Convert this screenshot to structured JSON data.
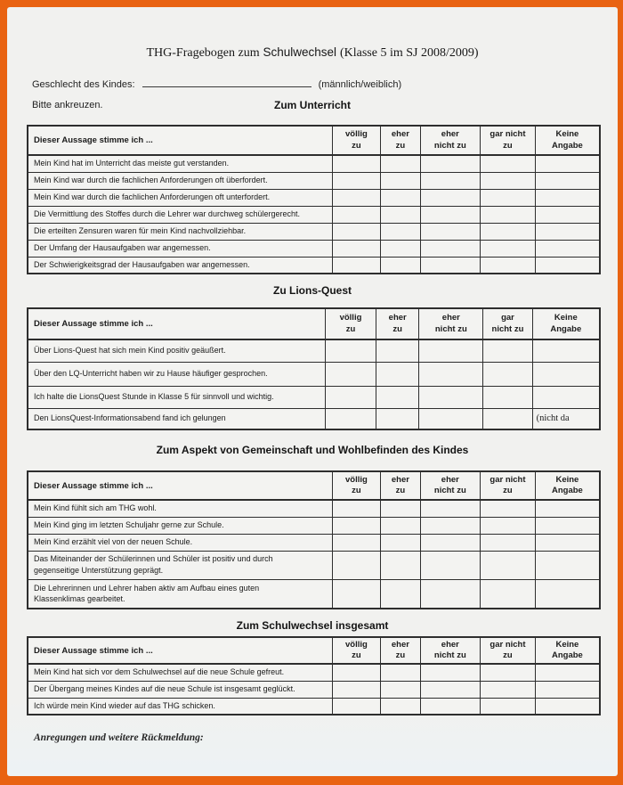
{
  "document": {
    "title": {
      "prefix": "THG-Fragebogen zum",
      "highlight": "Schulwechsel",
      "suffix": "(Klasse 5 im SJ 2008/2009)"
    },
    "gender_field": {
      "label": "Geschlecht des Kindes:",
      "value": "",
      "suffix": "(männlich/weiblich)"
    },
    "instruction": "Bitte ankreuzen.",
    "statement_header": "Dieser Aussage stimme ich ...",
    "answer_scale": [
      "völlig zu",
      "eher zu",
      "eher nicht zu",
      "gar nicht zu",
      "Keine Angabe"
    ],
    "sections": [
      {
        "title": "Zum Unterricht",
        "columns": [
          "völlig\nzu",
          "eher\nzu",
          "eher\nnicht zu",
          "gar nicht\nzu",
          "Keine\nAngabe"
        ],
        "rows": [
          {
            "statement": "Mein Kind hat im Unterricht das meiste gut verstanden."
          },
          {
            "statement": "Mein Kind war durch die fachlichen Anforderungen oft  überfordert."
          },
          {
            "statement": "Mein Kind war durch die fachlichen Anforderungen oft  unterfordert."
          },
          {
            "statement": "Die Vermittlung des Stoffes durch die Lehrer war durchweg schülergerecht."
          },
          {
            "statement": "Die erteilten  Zensuren waren für mein Kind nachvollziehbar."
          },
          {
            "statement": "Der Umfang der Hausaufgaben war angemessen."
          },
          {
            "statement": "Der Schwierigkeitsgrad der Hausaufgaben war angemessen."
          }
        ]
      },
      {
        "title": "Zu Lions-Quest",
        "columns": [
          "völlig\nzu",
          "eher\nzu",
          "eher\nnicht zu",
          "gar\nnicht zu",
          "Keine\nAngabe"
        ],
        "rows": [
          {
            "statement": "Über Lions-Quest hat sich mein Kind positiv geäußert."
          },
          {
            "statement": "Über den LQ-Unterricht haben wir zu Hause häufiger gesprochen."
          },
          {
            "statement": "Ich halte die LionsQuest Stunde in Klasse 5 für sinnvoll und wichtig."
          },
          {
            "statement": "Den LionsQuest-Informationsabend  fand ich gelungen",
            "last_cell_note": "(nicht da"
          }
        ]
      },
      {
        "title": "Zum Aspekt von Gemeinschaft und Wohlbefinden des Kindes",
        "columns": [
          "völlig\nzu",
          "eher\nzu",
          "eher\nnicht zu",
          "gar nicht\nzu",
          "Keine\nAngabe"
        ],
        "rows": [
          {
            "statement": "Mein Kind fühlt sich am THG  wohl."
          },
          {
            "statement": "Mein Kind ging im letzten Schuljahr gerne zur Schule."
          },
          {
            "statement": "Mein Kind erzählt viel von der neuen Schule."
          },
          {
            "statement": "Das Miteinander der Schülerinnen und Schüler ist positiv und durch\ngegenseitige Unterstützung geprägt."
          },
          {
            "statement": "Die Lehrerinnen und Lehrer haben  aktiv am Aufbau eines guten\nKlassenklimas gearbeitet."
          }
        ]
      },
      {
        "title": "Zum Schulwechsel insgesamt",
        "columns": [
          "völlig\nzu",
          "eher\nzu",
          "eher\nnicht zu",
          "gar nicht\nzu",
          "Keine\nAngabe"
        ],
        "rows": [
          {
            "statement": "Mein Kind hat sich  vor dem Schulwechsel  auf die neue Schule gefreut."
          },
          {
            "statement": "Der Übergang meines Kindes auf die neue Schule ist insgesamt geglückt."
          },
          {
            "statement": "Ich würde mein Kind wieder auf das THG schicken."
          }
        ]
      }
    ],
    "footer_note": "Anregungen und weitere Rückmeldung:",
    "colors": {
      "frame": "#e96312",
      "paper": "#f1f1ef",
      "table_border": "#2e2e2e"
    }
  }
}
